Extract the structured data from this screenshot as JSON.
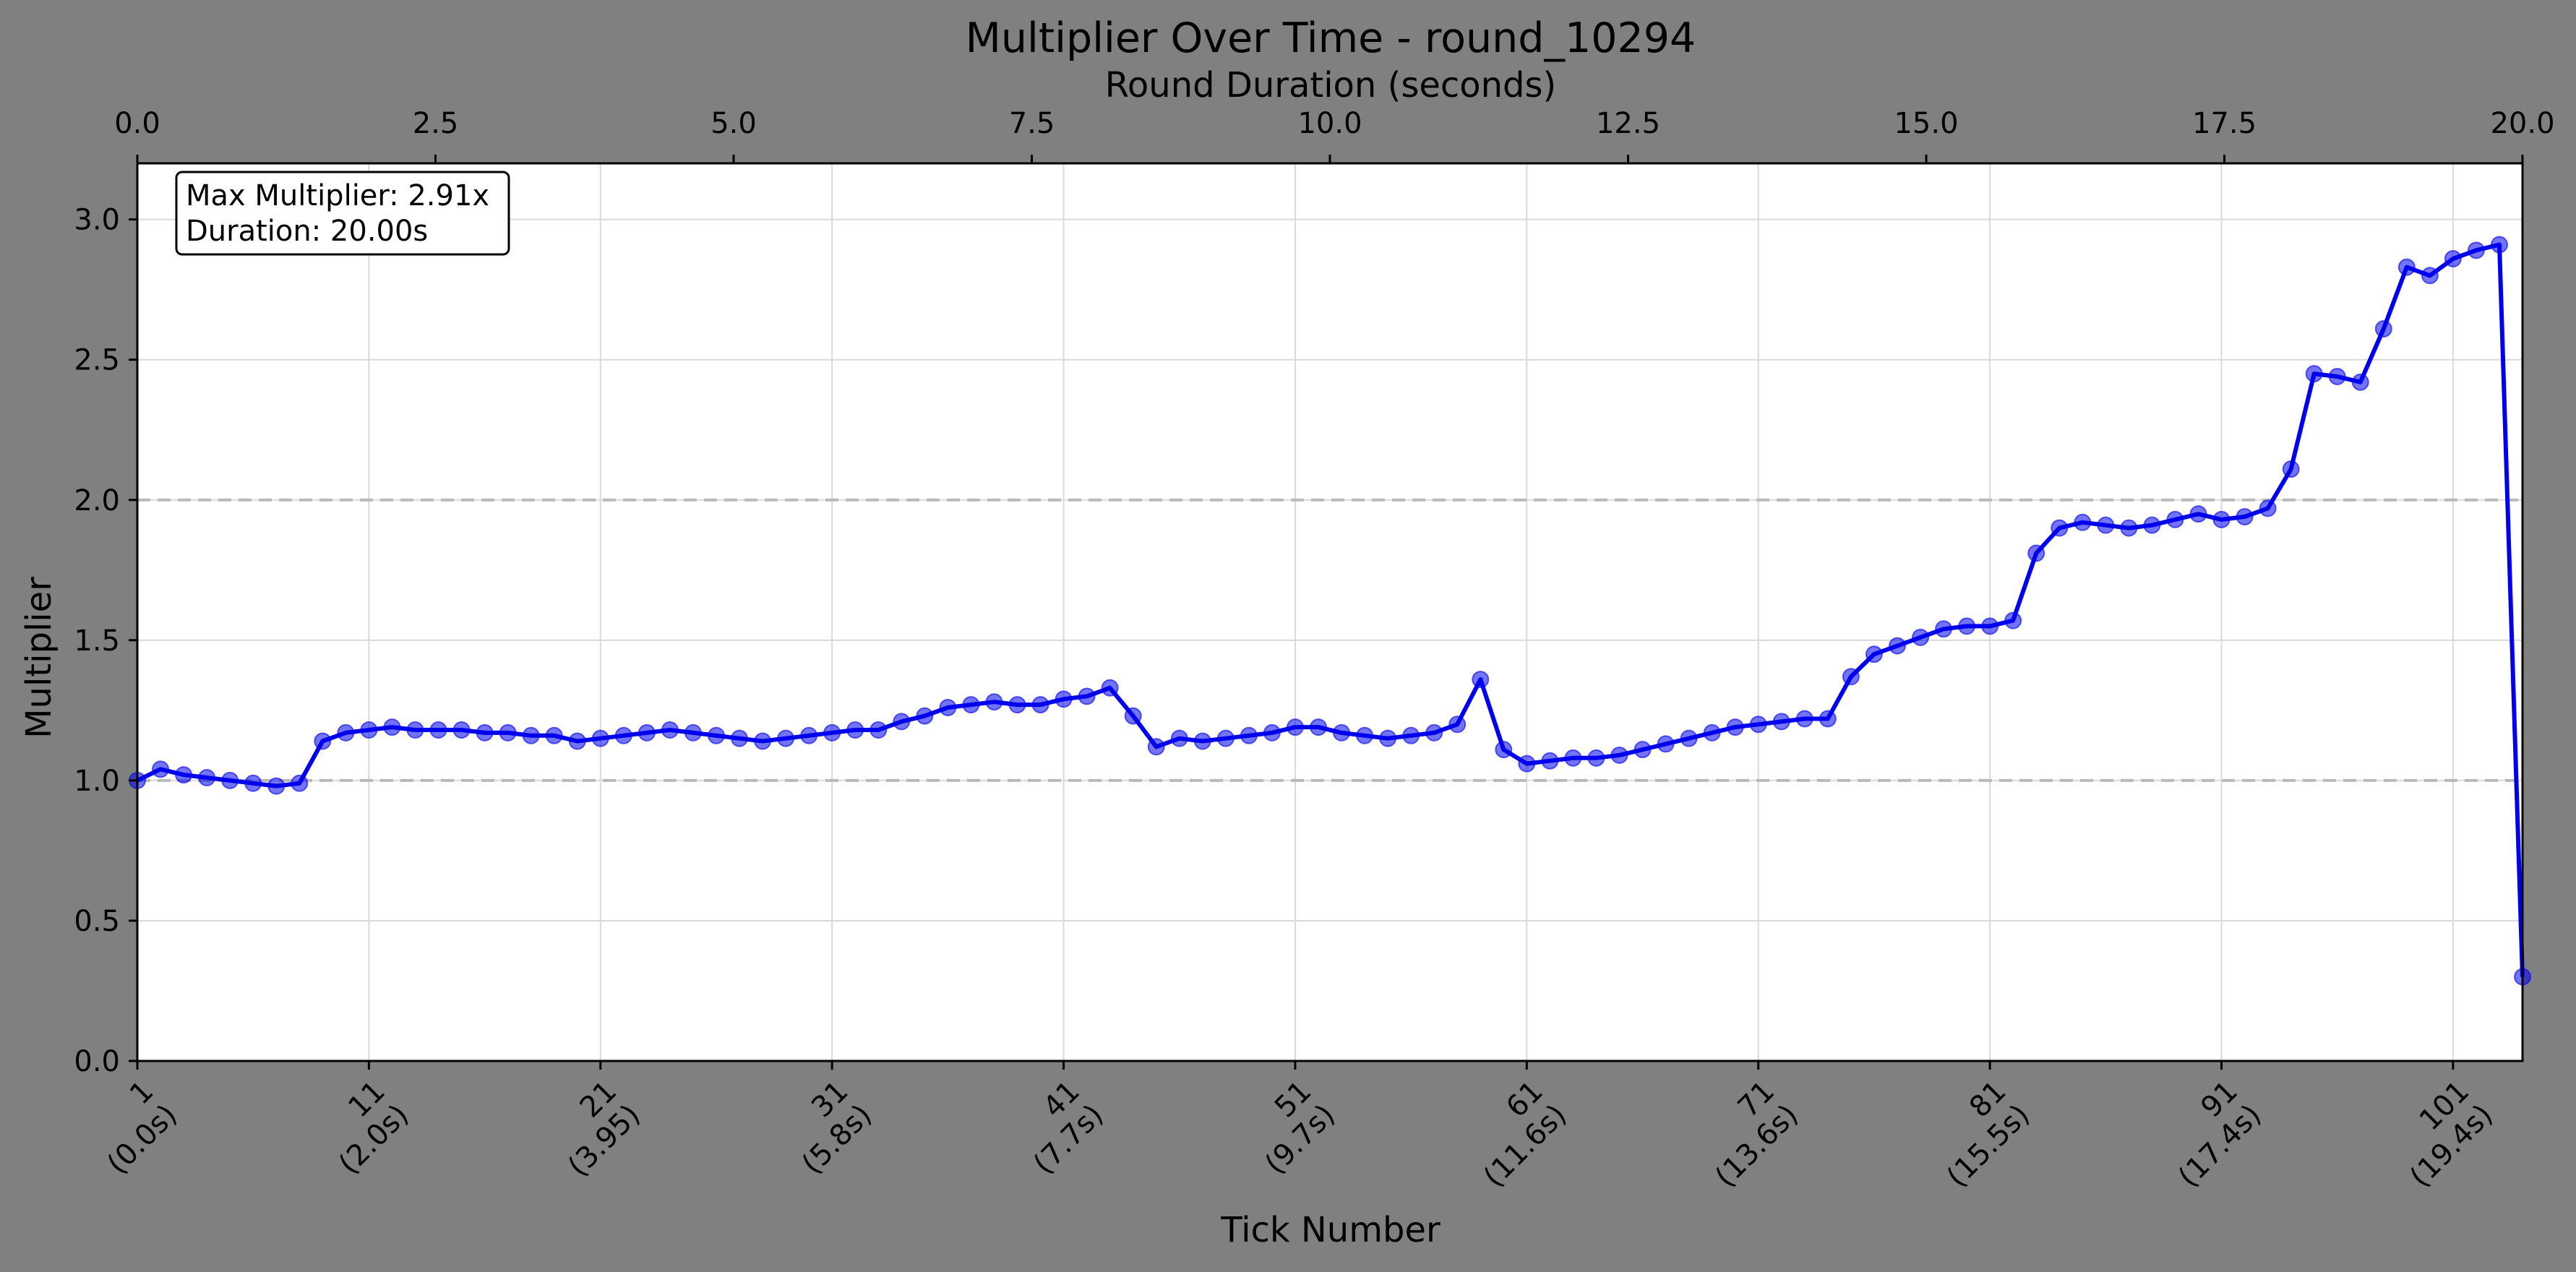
{
  "chart_data": {
    "type": "line",
    "title": "Multiplier Over Time - round_10294",
    "xlabel": "Tick Number",
    "ylabel": "Multiplier",
    "top_xlabel": "Round Duration (seconds)",
    "xlim": [
      1,
      104
    ],
    "ylim": [
      0,
      3.2
    ],
    "top_xlim": [
      0,
      20
    ],
    "yticks": [
      "0.0",
      "0.5",
      "1.0",
      "1.5",
      "2.0",
      "2.5",
      "3.0"
    ],
    "top_xticks": [
      "0.0",
      "2.5",
      "5.0",
      "7.5",
      "10.0",
      "12.5",
      "15.0",
      "17.5",
      "20.0"
    ],
    "bottom_xticks": [
      {
        "tick": "1",
        "time": "(0.0s)"
      },
      {
        "tick": "11",
        "time": "(2.0s)"
      },
      {
        "tick": "21",
        "time": "(3.95)"
      },
      {
        "tick": "31",
        "time": "(5.8s)"
      },
      {
        "tick": "41",
        "time": "(7.7s)"
      },
      {
        "tick": "51",
        "time": "(9.7s)"
      },
      {
        "tick": "61",
        "time": "(11.6s)"
      },
      {
        "tick": "71",
        "time": "(13.6s)"
      },
      {
        "tick": "81",
        "time": "(15.5s)"
      },
      {
        "tick": "91",
        "time": "(17.4s)"
      },
      {
        "tick": "101",
        "time": "(19.4s)"
      }
    ],
    "reference_lines": [
      1.0,
      2.0
    ],
    "grid": true,
    "annotation": {
      "line1": "Max Multiplier: 2.91x",
      "line2": "Duration: 20.00s"
    },
    "series": [
      {
        "color": "#0000ee",
        "x": [
          1,
          2,
          3,
          4,
          5,
          6,
          7,
          8,
          9,
          10,
          11,
          12,
          13,
          14,
          15,
          16,
          17,
          18,
          19,
          20,
          21,
          22,
          23,
          24,
          25,
          26,
          27,
          28,
          29,
          30,
          31,
          32,
          33,
          34,
          35,
          36,
          37,
          38,
          39,
          40,
          41,
          42,
          43,
          44,
          45,
          46,
          47,
          48,
          49,
          50,
          51,
          52,
          53,
          54,
          55,
          56,
          57,
          58,
          59,
          60,
          61,
          62,
          63,
          64,
          65,
          66,
          67,
          68,
          69,
          70,
          71,
          72,
          73,
          74,
          75,
          76,
          77,
          78,
          79,
          80,
          81,
          82,
          83,
          84,
          85,
          86,
          87,
          88,
          89,
          90,
          91,
          92,
          93,
          94,
          95,
          96,
          97,
          98,
          99,
          100,
          101,
          102,
          103,
          104
        ],
        "y": [
          1.0,
          1.04,
          1.02,
          1.01,
          1.0,
          0.99,
          0.98,
          0.99,
          1.14,
          1.17,
          1.18,
          1.19,
          1.18,
          1.18,
          1.18,
          1.17,
          1.17,
          1.16,
          1.16,
          1.14,
          1.15,
          1.16,
          1.17,
          1.18,
          1.17,
          1.16,
          1.15,
          1.14,
          1.15,
          1.16,
          1.17,
          1.18,
          1.18,
          1.21,
          1.23,
          1.26,
          1.27,
          1.28,
          1.27,
          1.27,
          1.29,
          1.3,
          1.33,
          1.23,
          1.12,
          1.15,
          1.14,
          1.15,
          1.16,
          1.17,
          1.19,
          1.19,
          1.17,
          1.16,
          1.15,
          1.16,
          1.17,
          1.2,
          1.36,
          1.11,
          1.06,
          1.07,
          1.08,
          1.08,
          1.09,
          1.11,
          1.13,
          1.15,
          1.17,
          1.19,
          1.2,
          1.21,
          1.22,
          1.22,
          1.37,
          1.45,
          1.48,
          1.51,
          1.54,
          1.55,
          1.55,
          1.57,
          1.81,
          1.9,
          1.92,
          1.91,
          1.9,
          1.91,
          1.93,
          1.95,
          1.93,
          1.94,
          1.97,
          2.11,
          2.45,
          2.44,
          2.42,
          2.61,
          2.83,
          2.8,
          2.86,
          2.89,
          2.91,
          0.3
        ]
      }
    ]
  }
}
